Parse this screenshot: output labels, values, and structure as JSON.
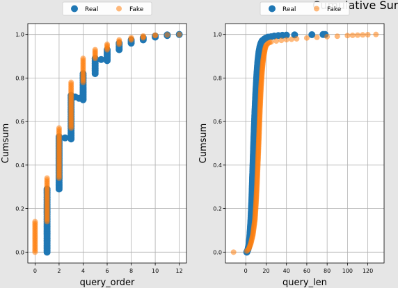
{
  "suptitle": "Cumulative Sur",
  "colors": {
    "real": "#1f77b4",
    "fake": "#ff7f0e",
    "figure_bg": "#e6e6e6",
    "axes_bg": "#ffffff",
    "grid": "#b0b0b0"
  },
  "chart_data": [
    {
      "type": "scatter",
      "xlabel": "query_order",
      "ylabel": "Cumsum",
      "xlim": [
        -0.6,
        12.6
      ],
      "ylim": [
        -0.05,
        1.05
      ],
      "xticks": [
        0,
        2,
        4,
        6,
        8,
        10,
        12
      ],
      "yticks": [
        0.0,
        0.2,
        0.4,
        0.6,
        0.8,
        1.0
      ],
      "grid": true,
      "legend": {
        "placement": "top-center-outside",
        "entries": [
          "Real",
          "Fake"
        ]
      },
      "series": [
        {
          "name": "Real",
          "points": [
            [
              1,
              0.0
            ],
            [
              1,
              0.29
            ],
            [
              2,
              0.29
            ],
            [
              2,
              0.53
            ],
            [
              3,
              0.52
            ],
            [
              3,
              0.72
            ],
            [
              4,
              0.7
            ],
            [
              4,
              0.82
            ],
            [
              5,
              0.82
            ],
            [
              5,
              0.89
            ],
            [
              6,
              0.88
            ],
            [
              6,
              0.93
            ],
            [
              7,
              0.93
            ],
            [
              7,
              0.96
            ],
            [
              8,
              0.96
            ],
            [
              8,
              0.975
            ],
            [
              9,
              0.975
            ],
            [
              9,
              0.985
            ],
            [
              10,
              0.988
            ],
            [
              10,
              0.993
            ],
            [
              11,
              0.995
            ],
            [
              11,
              0.998
            ],
            [
              12,
              1.0
            ]
          ]
        },
        {
          "name": "Fake",
          "points": [
            [
              0,
              0.0
            ],
            [
              0,
              0.14
            ],
            [
              1,
              0.14
            ],
            [
              1,
              0.34
            ],
            [
              2,
              0.34
            ],
            [
              2,
              0.57
            ],
            [
              3,
              0.57
            ],
            [
              3,
              0.78
            ],
            [
              4,
              0.78
            ],
            [
              4,
              0.89
            ],
            [
              5,
              0.89
            ],
            [
              5,
              0.93
            ],
            [
              6,
              0.93
            ],
            [
              6,
              0.955
            ],
            [
              7,
              0.955
            ],
            [
              7,
              0.975
            ],
            [
              8,
              0.975
            ],
            [
              8,
              0.985
            ],
            [
              9,
              0.985
            ],
            [
              9,
              0.993
            ],
            [
              10,
              0.995
            ],
            [
              10,
              0.997
            ],
            [
              11,
              0.998
            ],
            [
              12,
              1.0
            ]
          ]
        }
      ]
    },
    {
      "type": "scatter",
      "xlabel": "query_len",
      "ylabel": "Cumsum",
      "xlim": [
        -20,
        136
      ],
      "ylim": [
        -0.05,
        1.05
      ],
      "xticks": [
        0,
        20,
        40,
        60,
        80,
        100,
        120
      ],
      "yticks": [
        0.0,
        0.2,
        0.4,
        0.6,
        0.8,
        1.0
      ],
      "grid": true,
      "legend": {
        "placement": "top-center-outside",
        "entries": [
          "Real",
          "Fake"
        ]
      },
      "series": [
        {
          "name": "Real",
          "points": [
            [
              1,
              0.0
            ],
            [
              2,
              0.01
            ],
            [
              3,
              0.03
            ],
            [
              4,
              0.07
            ],
            [
              5,
              0.14
            ],
            [
              6,
              0.24
            ],
            [
              7,
              0.38
            ],
            [
              8,
              0.52
            ],
            [
              9,
              0.64
            ],
            [
              10,
              0.74
            ],
            [
              11,
              0.82
            ],
            [
              12,
              0.88
            ],
            [
              13,
              0.92
            ],
            [
              14,
              0.945
            ],
            [
              15,
              0.96
            ],
            [
              16,
              0.97
            ],
            [
              18,
              0.978
            ],
            [
              20,
              0.984
            ],
            [
              22,
              0.988
            ],
            [
              25,
              0.99
            ],
            [
              28,
              0.993
            ],
            [
              32,
              0.995
            ],
            [
              36,
              0.996
            ],
            [
              40,
              0.997
            ],
            [
              48,
              0.998
            ],
            [
              65,
              0.999
            ],
            [
              76,
              1.0
            ],
            [
              78,
              1.0
            ]
          ]
        },
        {
          "name": "Fake",
          "points": [
            [
              -12,
              0.0
            ],
            [
              1,
              0.005
            ],
            [
              3,
              0.015
            ],
            [
              5,
              0.04
            ],
            [
              7,
              0.08
            ],
            [
              9,
              0.15
            ],
            [
              10,
              0.22
            ],
            [
              11,
              0.31
            ],
            [
              12,
              0.42
            ],
            [
              13,
              0.54
            ],
            [
              14,
              0.66
            ],
            [
              15,
              0.76
            ],
            [
              16,
              0.83
            ],
            [
              17,
              0.88
            ],
            [
              18,
              0.91
            ],
            [
              19,
              0.935
            ],
            [
              20,
              0.95
            ],
            [
              22,
              0.96
            ],
            [
              25,
              0.966
            ],
            [
              30,
              0.97
            ],
            [
              35,
              0.973
            ],
            [
              40,
              0.976
            ],
            [
              45,
              0.978
            ],
            [
              50,
              0.98
            ],
            [
              60,
              0.984
            ],
            [
              70,
              0.987
            ],
            [
              80,
              0.99
            ],
            [
              90,
              0.992
            ],
            [
              100,
              0.995
            ],
            [
              105,
              0.996
            ],
            [
              110,
              0.997
            ],
            [
              115,
              0.998
            ],
            [
              120,
              0.999
            ],
            [
              128,
              1.0
            ]
          ]
        }
      ]
    }
  ]
}
